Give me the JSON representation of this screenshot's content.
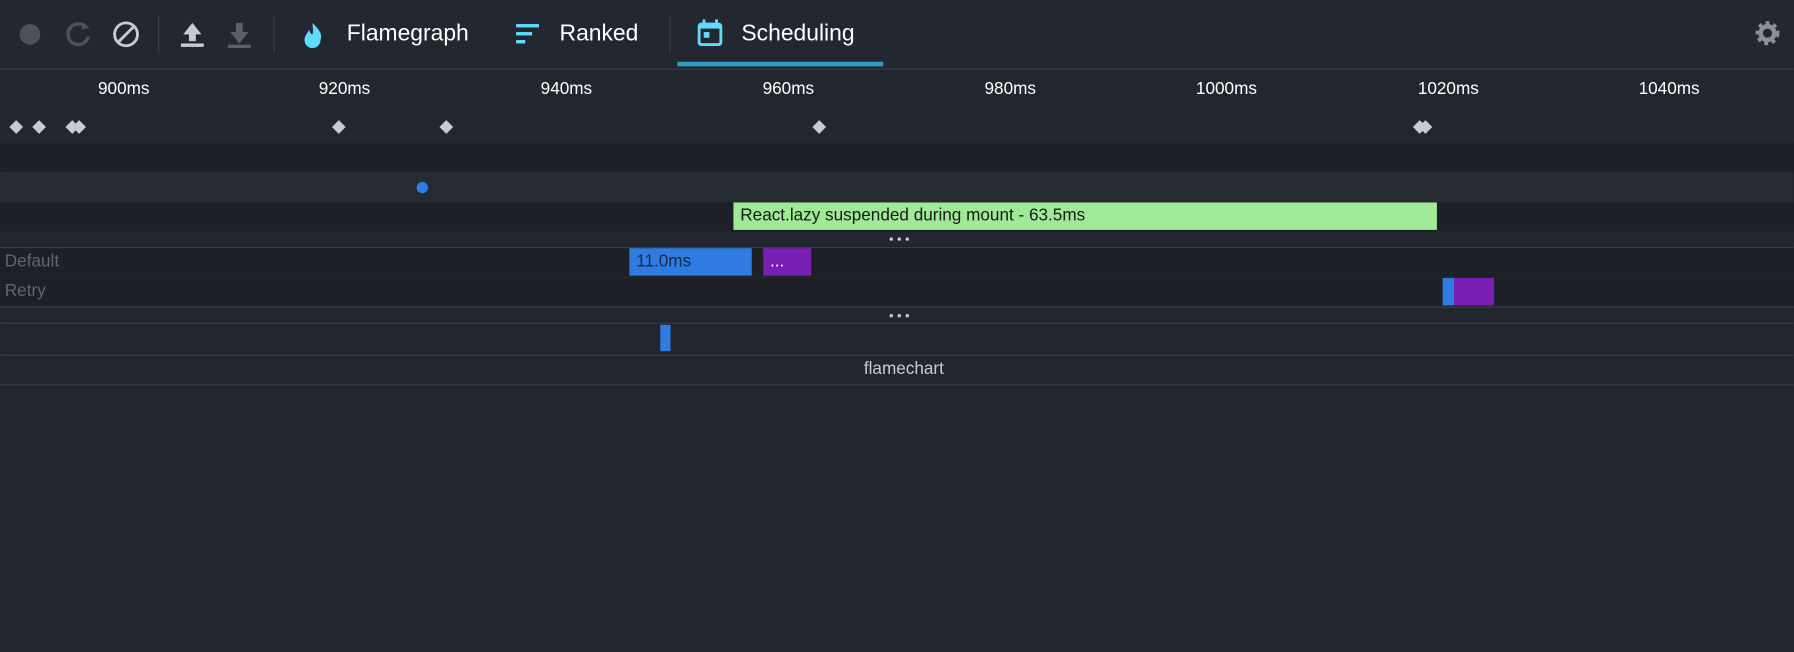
{
  "toolbar": {
    "tabs": [
      "Flamegraph",
      "Ranked",
      "Scheduling"
    ]
  },
  "timeline": {
    "ticks": [
      "900ms",
      "920ms",
      "940ms",
      "960ms",
      "980ms",
      "1000ms",
      "1020ms",
      "1040ms"
    ]
  },
  "suspense": {
    "label": "React.lazy suspended during mount - 63.5ms"
  },
  "lanes": {
    "default": {
      "name": "Default",
      "bar_label": "11.0ms",
      "more": "..."
    },
    "retry": {
      "name": "Retry"
    }
  },
  "flamechart": {
    "label": "flamechart"
  }
}
